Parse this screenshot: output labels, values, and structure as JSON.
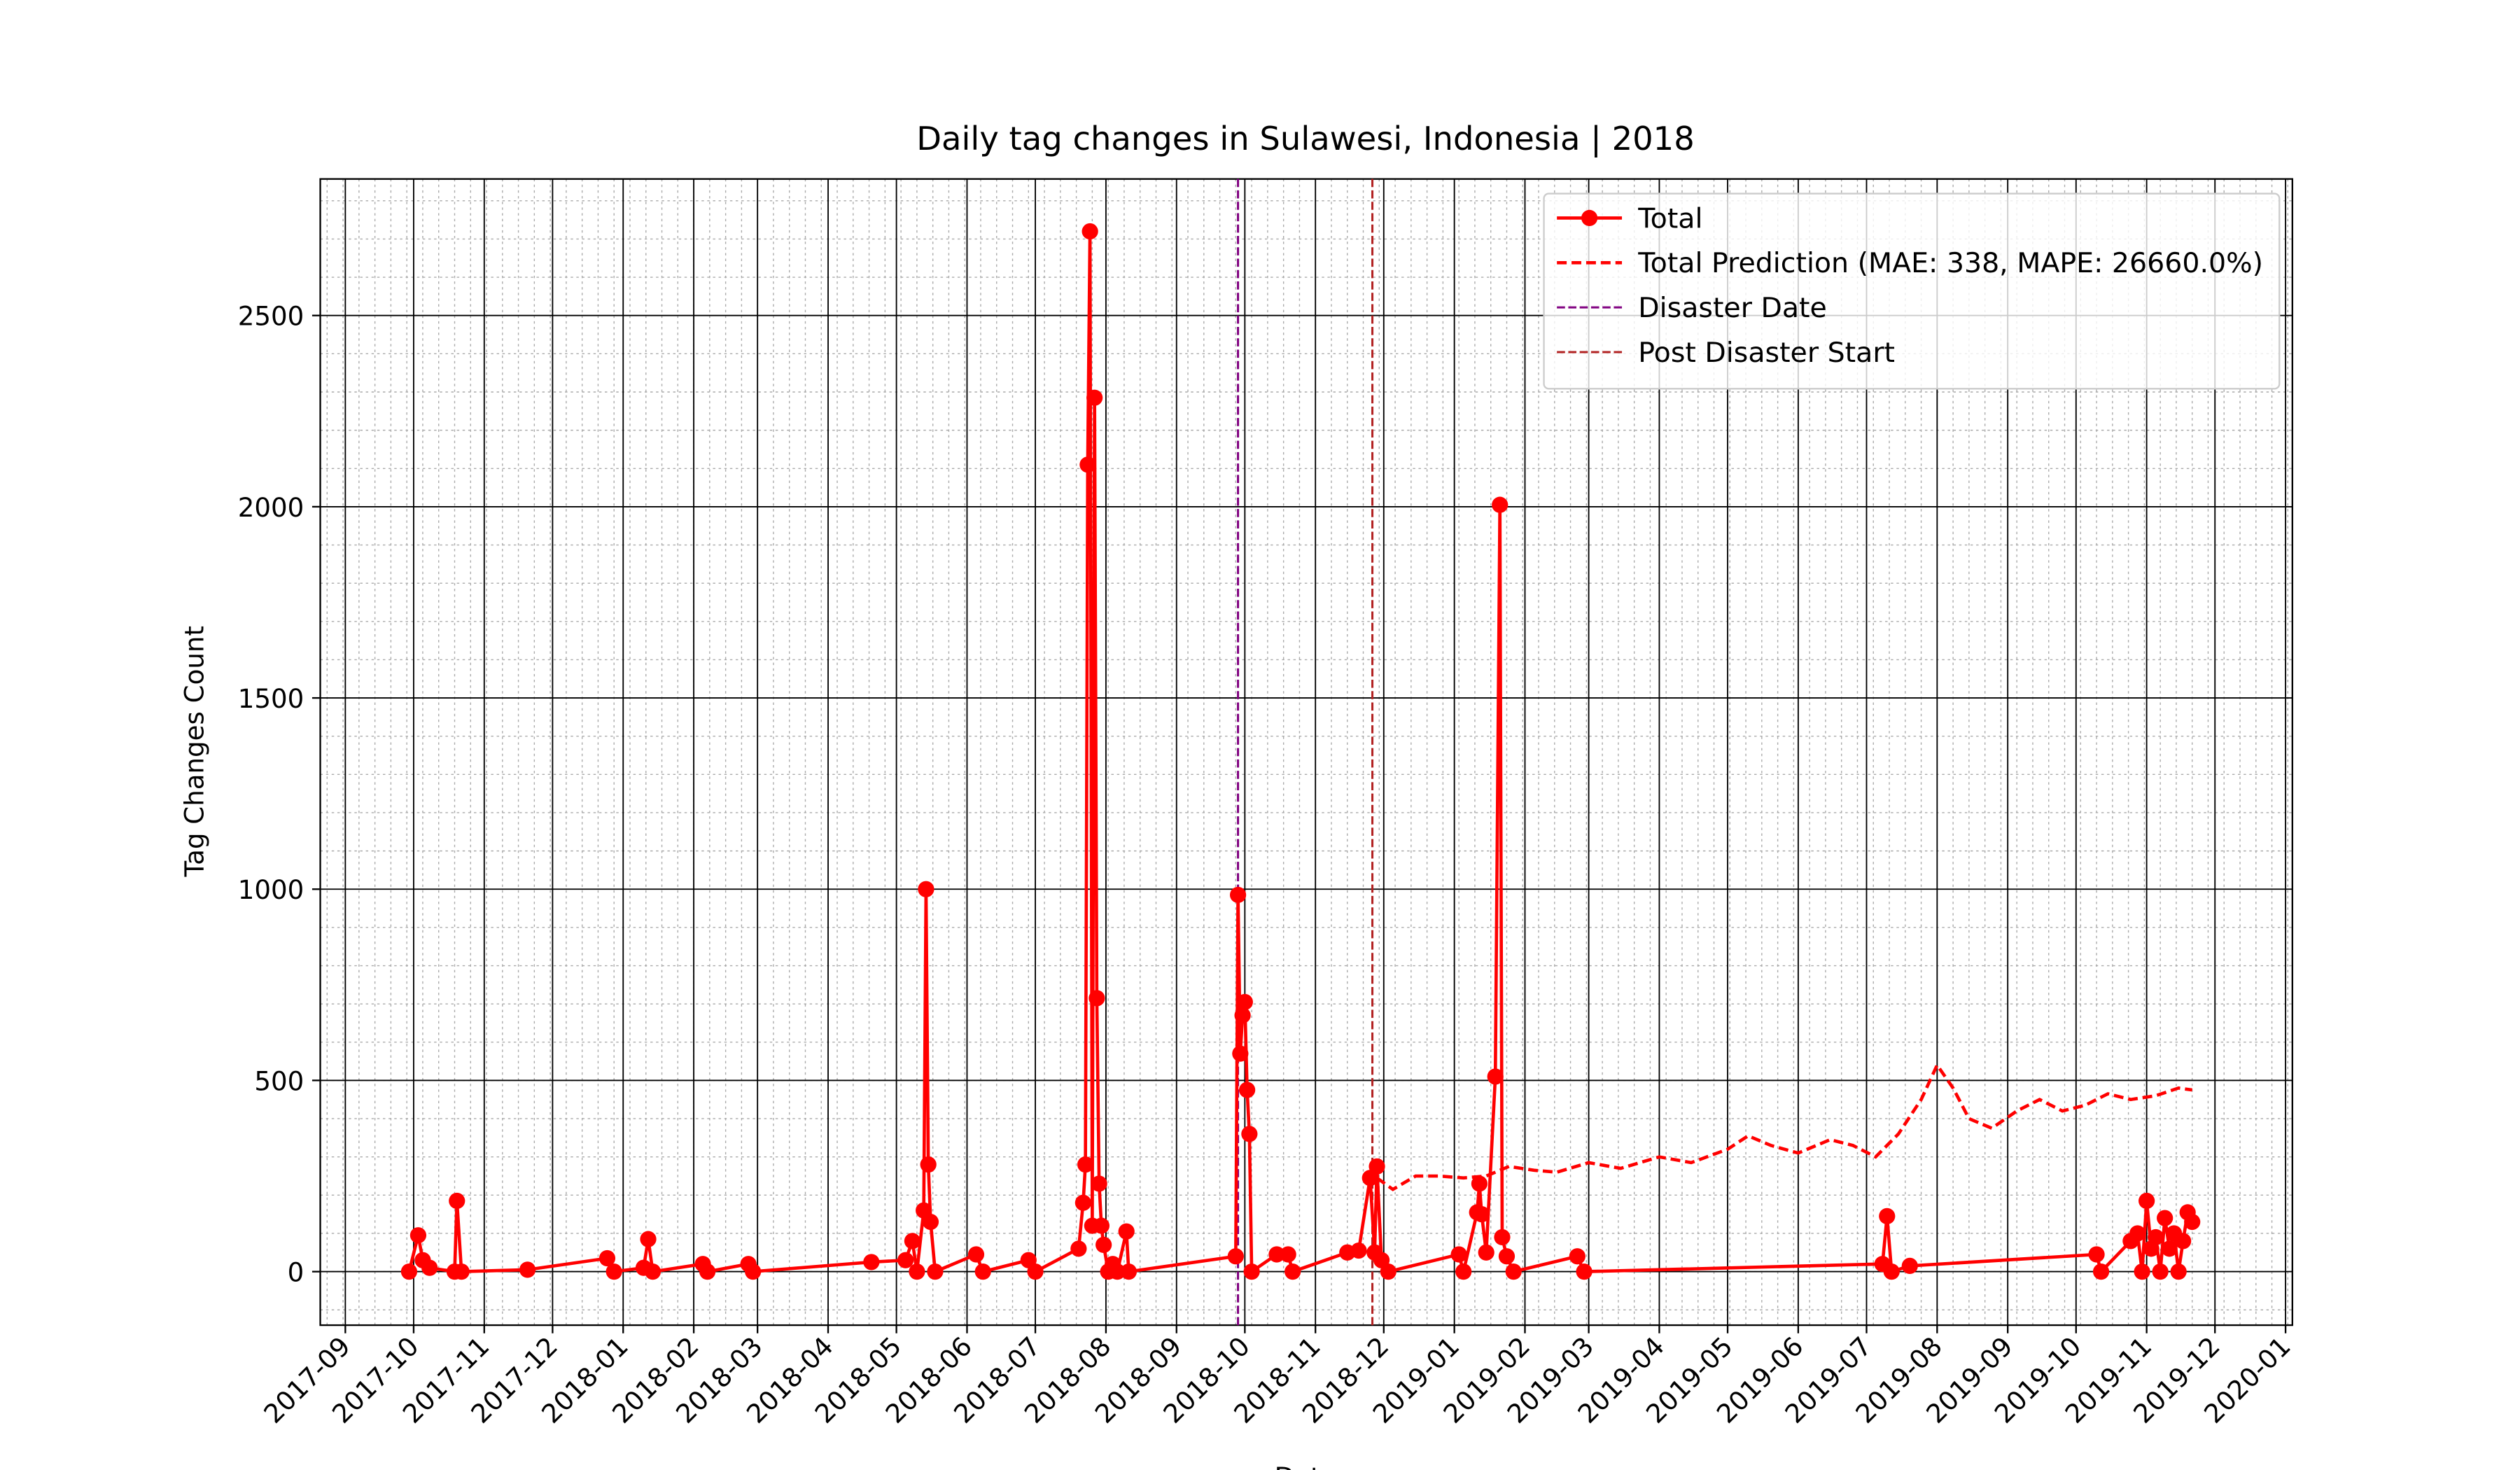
{
  "chart_data": {
    "type": "line",
    "title": "Daily tag changes in Sulawesi, Indonesia | 2018",
    "x_label": "Date",
    "y_label": "Tag Changes Count",
    "xlim": [
      "2017-08-21",
      "2020-01-04"
    ],
    "ylim": [
      -140,
      2857
    ],
    "xticks": [
      "2017-09",
      "2017-10",
      "2017-11",
      "2017-12",
      "2018-01",
      "2018-02",
      "2018-03",
      "2018-04",
      "2018-05",
      "2018-06",
      "2018-07",
      "2018-08",
      "2018-09",
      "2018-10",
      "2018-11",
      "2018-12",
      "2019-01",
      "2019-02",
      "2019-03",
      "2019-04",
      "2019-05",
      "2019-06",
      "2019-07",
      "2019-08",
      "2019-09",
      "2019-10",
      "2019-11",
      "2019-12",
      "2020-01"
    ],
    "yticks": [
      0,
      500,
      1000,
      1500,
      2000,
      2500
    ],
    "grid": true,
    "minor_grid": true,
    "legend": "upper right",
    "series": [
      {
        "name": "Total",
        "color": "#ff0000",
        "linestyle": "solid",
        "marker": "o",
        "x": [
          "2017-09-29",
          "2017-10-03",
          "2017-10-05",
          "2017-10-08",
          "2017-10-19",
          "2017-10-20",
          "2017-10-22",
          "2017-11-20",
          "2017-12-25",
          "2017-12-28",
          "2018-01-10",
          "2018-01-12",
          "2018-01-14",
          "2018-02-05",
          "2018-02-07",
          "2018-02-25",
          "2018-02-27",
          "2018-04-20",
          "2018-05-05",
          "2018-05-08",
          "2018-05-10",
          "2018-05-13",
          "2018-05-14",
          "2018-05-15",
          "2018-05-16",
          "2018-05-18",
          "2018-06-05",
          "2018-06-08",
          "2018-06-28",
          "2018-07-01",
          "2018-07-20",
          "2018-07-22",
          "2018-07-23",
          "2018-07-24",
          "2018-07-25",
          "2018-07-26",
          "2018-07-27",
          "2018-07-28",
          "2018-07-29",
          "2018-07-30",
          "2018-07-31",
          "2018-08-02",
          "2018-08-04",
          "2018-08-06",
          "2018-08-10",
          "2018-08-11",
          "2018-09-27",
          "2018-09-28",
          "2018-09-29",
          "2018-09-30",
          "2018-10-01",
          "2018-10-02",
          "2018-10-03",
          "2018-10-04",
          "2018-10-15",
          "2018-10-20",
          "2018-10-22",
          "2018-11-15",
          "2018-11-20",
          "2018-11-25",
          "2018-11-27",
          "2018-11-28",
          "2018-11-30",
          "2018-12-03",
          "2019-01-03",
          "2019-01-05",
          "2019-01-11",
          "2019-01-12",
          "2019-01-13",
          "2019-01-15",
          "2019-01-19",
          "2019-01-21",
          "2019-01-22",
          "2019-01-24",
          "2019-01-27",
          "2019-02-24",
          "2019-02-27",
          "2019-07-08",
          "2019-07-10",
          "2019-07-12",
          "2019-07-20",
          "2019-10-10",
          "2019-10-12",
          "2019-10-25",
          "2019-10-28",
          "2019-10-30",
          "2019-11-01",
          "2019-11-03",
          "2019-11-05",
          "2019-11-07",
          "2019-11-09",
          "2019-11-11",
          "2019-11-13",
          "2019-11-15",
          "2019-11-17",
          "2019-11-19",
          "2019-11-21"
        ],
        "values": [
          0,
          95,
          30,
          10,
          0,
          185,
          0,
          5,
          35,
          0,
          10,
          85,
          0,
          20,
          0,
          20,
          0,
          25,
          30,
          80,
          0,
          160,
          1000,
          280,
          130,
          0,
          45,
          0,
          30,
          0,
          60,
          180,
          280,
          2110,
          2720,
          120,
          2285,
          715,
          230,
          120,
          70,
          0,
          20,
          0,
          105,
          0,
          40,
          985,
          570,
          670,
          705,
          475,
          360,
          0,
          45,
          45,
          0,
          50,
          55,
          245,
          50,
          275,
          30,
          0,
          45,
          0,
          155,
          230,
          150,
          50,
          510,
          2005,
          90,
          40,
          0,
          40,
          0,
          20,
          145,
          0,
          15,
          45,
          0,
          80,
          100,
          0,
          185,
          60,
          90,
          0,
          140,
          60,
          100,
          0,
          80,
          155,
          130
        ]
      },
      {
        "name": "Total Prediction (MAE: 338, MAPE: 26660.0%)",
        "color": "#ff0000",
        "linestyle": "dashed",
        "x": [
          "2018-11-28",
          "2018-12-05",
          "2018-12-15",
          "2018-12-25",
          "2019-01-05",
          "2019-01-15",
          "2019-01-25",
          "2019-02-05",
          "2019-02-15",
          "2019-03-01",
          "2019-03-15",
          "2019-04-01",
          "2019-04-15",
          "2019-05-01",
          "2019-05-10",
          "2019-05-20",
          "2019-06-01",
          "2019-06-15",
          "2019-06-25",
          "2019-07-05",
          "2019-07-15",
          "2019-07-25",
          "2019-08-01",
          "2019-08-08",
          "2019-08-15",
          "2019-08-25",
          "2019-09-05",
          "2019-09-15",
          "2019-09-25",
          "2019-10-05",
          "2019-10-15",
          "2019-10-25",
          "2019-11-05",
          "2019-11-15",
          "2019-11-21"
        ],
        "values": [
          245,
          215,
          250,
          250,
          245,
          250,
          275,
          265,
          260,
          285,
          270,
          300,
          285,
          320,
          355,
          330,
          310,
          345,
          330,
          300,
          360,
          450,
          540,
          480,
          400,
          375,
          420,
          450,
          420,
          435,
          465,
          450,
          460,
          480,
          475
        ]
      }
    ],
    "vlines": [
      {
        "name": "Disaster Date",
        "x": "2018-09-28",
        "color": "#800080"
      },
      {
        "name": "Post Disaster Start",
        "x": "2018-11-26",
        "color": "#b22222"
      }
    ]
  }
}
